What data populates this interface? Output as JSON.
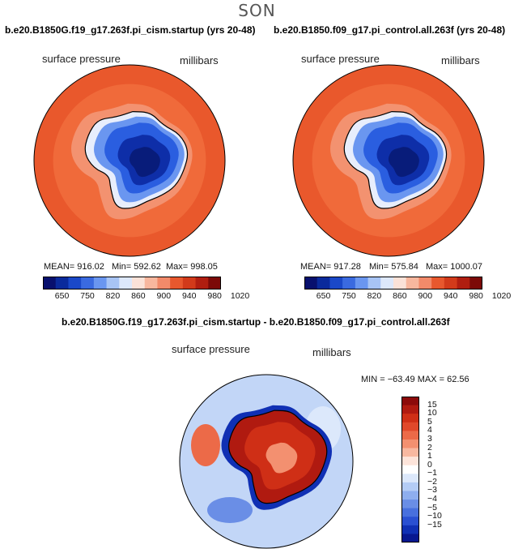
{
  "page": {
    "season": "SON"
  },
  "colors": {
    "land_deep": "#0a1e8c",
    "land_mid": "#2a5ee0",
    "ocean_main": "#e8502a",
    "ocean_light": "#f07a4a",
    "diff_pos_dark": "#8c0a0a",
    "diff_pos": "#c8321e",
    "diff_neg": "#2a4ee0",
    "diff_neg_light": "#9ab8f0"
  },
  "chart_data": [
    {
      "type": "heatmap",
      "title": "b.e20.B1850G.f19_g17.263f.pi_cism.startup (yrs 20-48)",
      "variable": "surface pressure",
      "units": "millibars",
      "stats": {
        "mean_label": "MEAN= 916.02",
        "min_label": "Min= 592.62",
        "max_label": "Max= 998.05",
        "mean": 916.02,
        "min": 592.62,
        "max": 998.05
      },
      "colorbar_levels": [
        650,
        750,
        820,
        860,
        900,
        940,
        980,
        1020
      ],
      "colorbar_colors": [
        "#08106e",
        "#0a2a9c",
        "#1a48c8",
        "#3a6ae0",
        "#6a96f0",
        "#a8c4f5",
        "#dde8fb",
        "#fbe2d8",
        "#f8b79e",
        "#f28a6a",
        "#e8582e",
        "#d23a1a",
        "#b01e10",
        "#7c0a08"
      ]
    },
    {
      "type": "heatmap",
      "title": "b.e20.B1850.f09_g17.pi_control.all.263f (yrs 20-48)",
      "variable": "surface pressure",
      "units": "millibars",
      "stats": {
        "mean_label": "MEAN= 917.28",
        "min_label": "Min= 575.84",
        "max_label": "Max= 1000.07",
        "mean": 917.28,
        "min": 575.84,
        "max": 1000.07
      },
      "colorbar_levels": [
        650,
        750,
        820,
        860,
        900,
        940,
        980,
        1020
      ],
      "colorbar_colors": [
        "#08106e",
        "#0a2a9c",
        "#1a48c8",
        "#3a6ae0",
        "#6a96f0",
        "#a8c4f5",
        "#dde8fb",
        "#fbe2d8",
        "#f8b79e",
        "#f28a6a",
        "#e8582e",
        "#d23a1a",
        "#b01e10",
        "#7c0a08"
      ]
    },
    {
      "type": "heatmap",
      "title": "b.e20.B1850G.f19_g17.263f.pi_cism.startup - b.e20.B1850.f09_g17.pi_control.all.263f",
      "variable": "surface pressure",
      "units": "millibars",
      "stats": {
        "minmax_label": "MIN = −63.49  MAX =   62.56",
        "min": -63.49,
        "max": 62.56
      },
      "colorbar_levels": [
        "15",
        "10",
        "5",
        "4",
        "3",
        "2",
        "1",
        "0",
        "−1",
        "−2",
        "−3",
        "−4",
        "−5",
        "−10",
        "−15"
      ],
      "colorbar_colors": [
        "#8c0a0a",
        "#b01a10",
        "#cf2f16",
        "#e0482a",
        "#ec6a48",
        "#f39070",
        "#f8b8a0",
        "#fde4da",
        "#ffffff",
        "#dce8fb",
        "#b4ccf5",
        "#8eaeee",
        "#6a8ee6",
        "#4870de",
        "#2a50d2",
        "#1030b4",
        "#081890"
      ]
    }
  ]
}
